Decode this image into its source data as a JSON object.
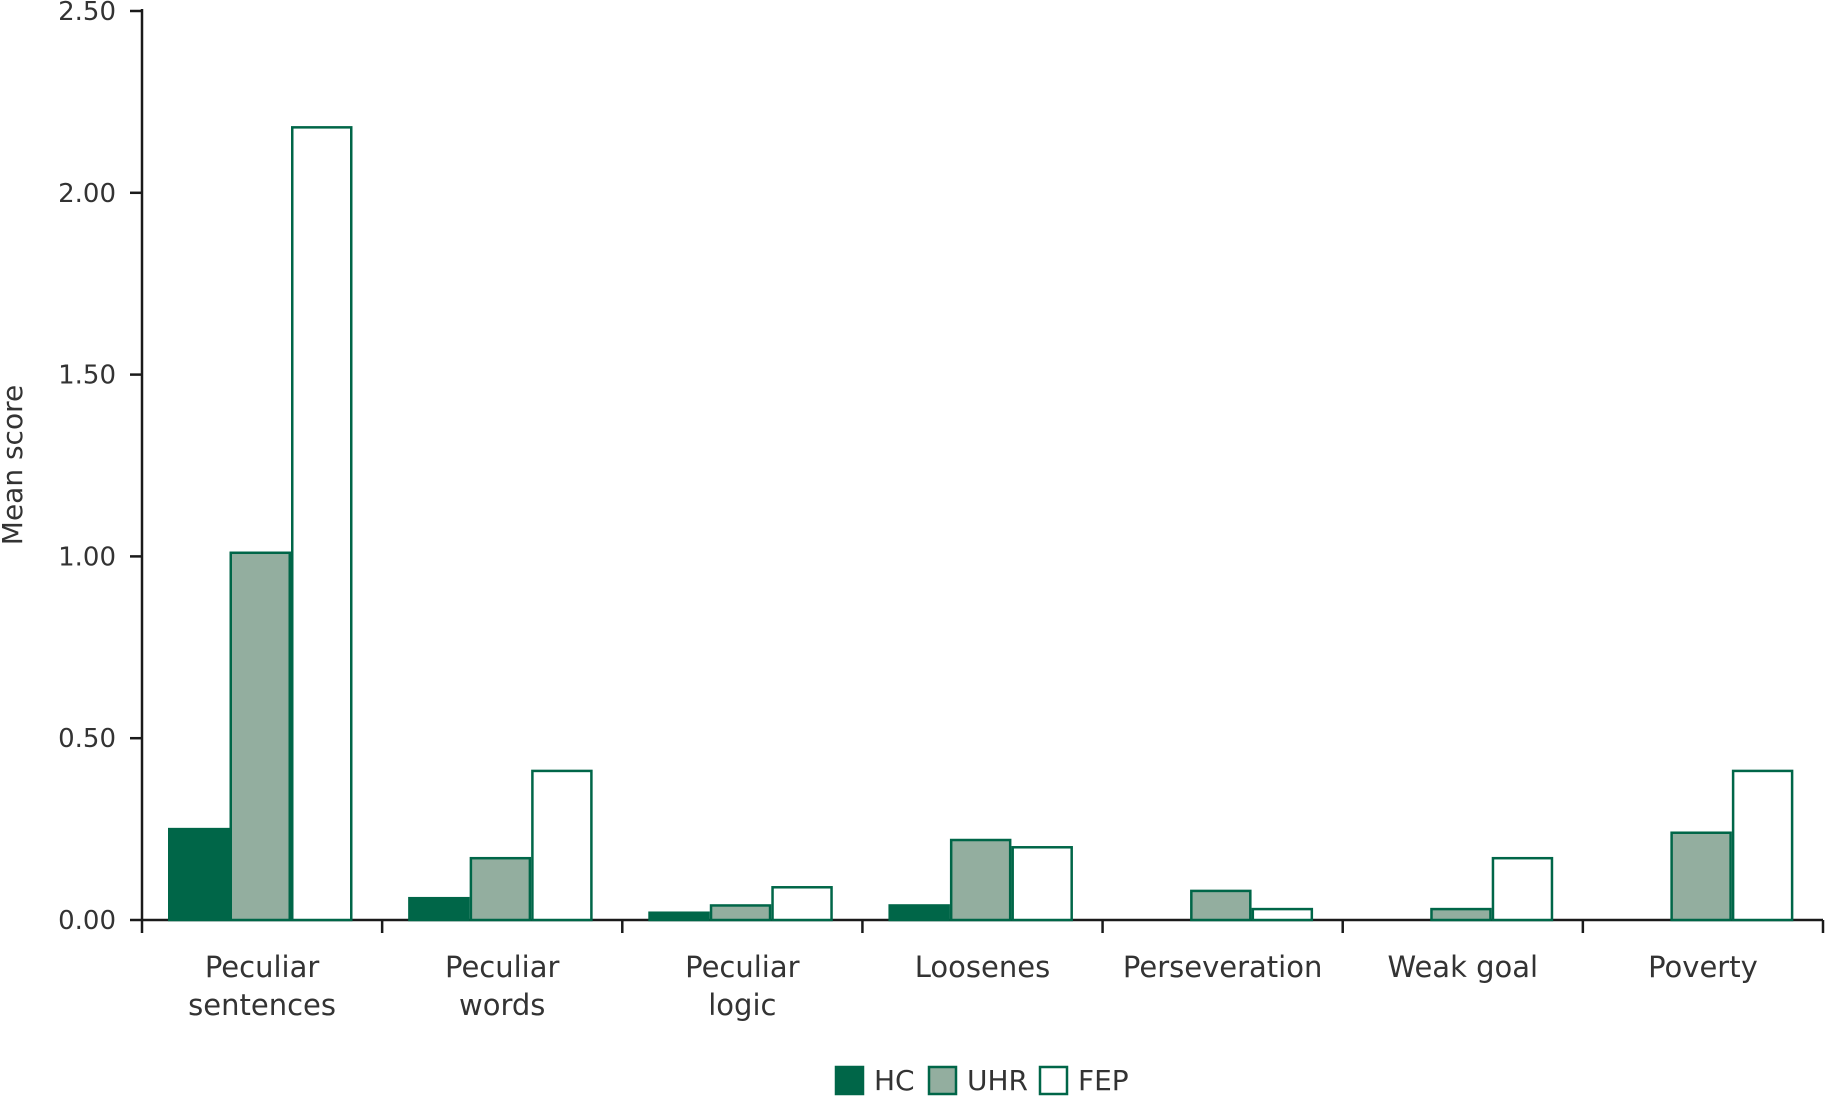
{
  "chart_data": {
    "type": "bar",
    "title": "",
    "xlabel": "",
    "ylabel": "Mean score",
    "ylim": [
      0,
      2.5
    ],
    "yticks": [
      "0.00",
      "0.50",
      "1.00",
      "1.50",
      "2.00",
      "2.50"
    ],
    "grid": false,
    "legend_position": "bottom-center",
    "categories": [
      [
        "Peculiar",
        "sentences"
      ],
      [
        "Peculiar",
        "words"
      ],
      [
        "Peculiar",
        "logic"
      ],
      [
        "Loosenes"
      ],
      [
        "Perseveration"
      ],
      [
        "Weak goal"
      ],
      [
        "Poverty"
      ]
    ],
    "series": [
      {
        "name": "HC",
        "values": [
          0.25,
          0.06,
          0.02,
          0.04,
          0.0,
          0.0,
          0.0
        ],
        "fill": "#006648",
        "stroke": "#006648"
      },
      {
        "name": "UHR",
        "values": [
          1.01,
          0.17,
          0.04,
          0.22,
          0.08,
          0.03,
          0.24
        ],
        "fill": "#93ae9f",
        "stroke": "#006648"
      },
      {
        "name": "FEP",
        "values": [
          2.18,
          0.41,
          0.09,
          0.2,
          0.03,
          0.17,
          0.41
        ],
        "fill": "#ffffff",
        "stroke": "#006648"
      }
    ]
  }
}
